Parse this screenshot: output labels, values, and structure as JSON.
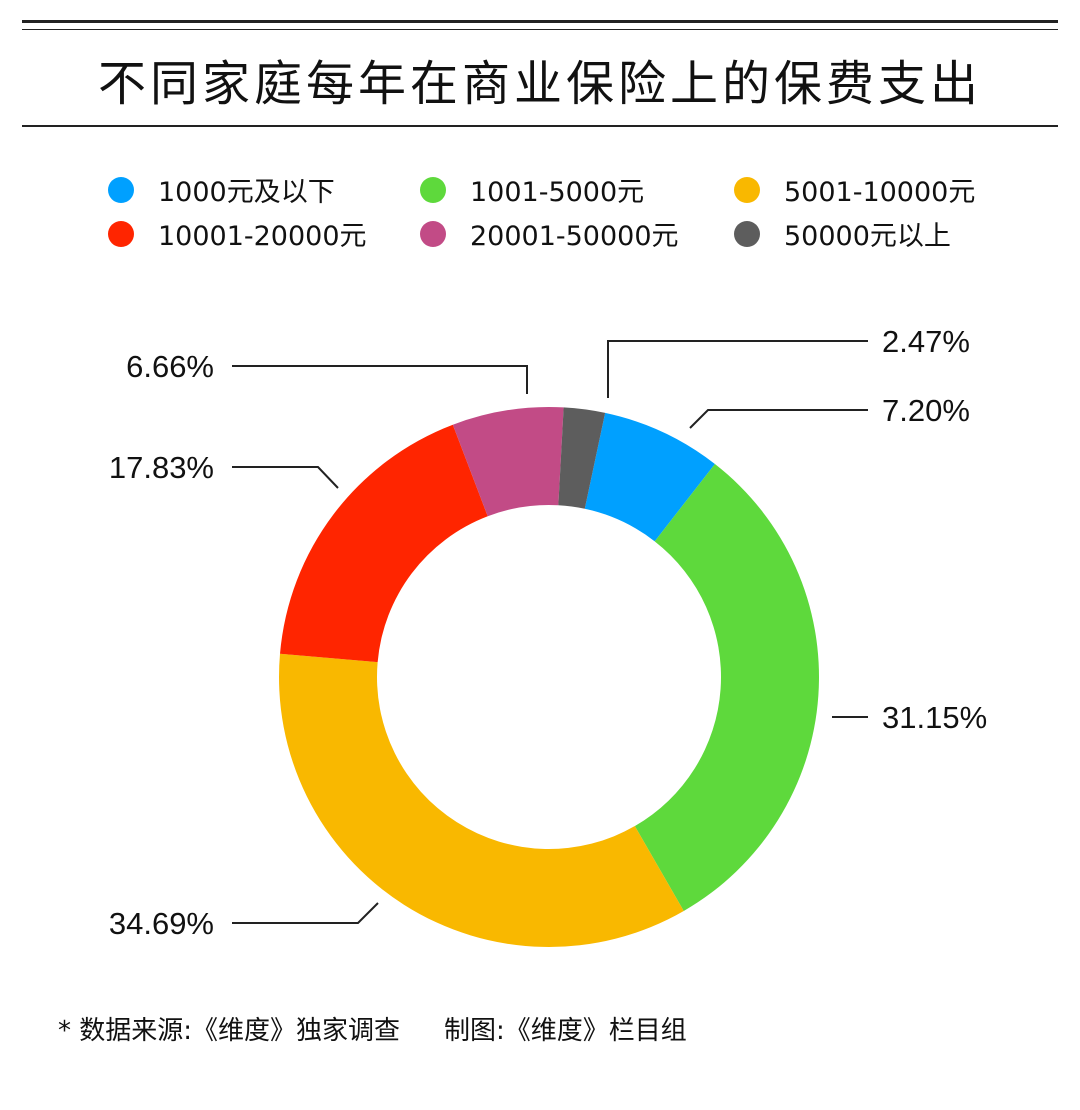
{
  "title": "不同家庭每年在商业保险上的保费支出",
  "chart_data": {
    "type": "pie",
    "donut": true,
    "title": "不同家庭每年在商业保险上的保费支出",
    "legend_position": "top",
    "slices": [
      {
        "label": "1000元及以下",
        "value": 7.2,
        "value_label": "7.20%",
        "color": "#00A0FF"
      },
      {
        "label": "1001-5000元",
        "value": 31.15,
        "value_label": "31.15%",
        "color": "#5ED93C"
      },
      {
        "label": "5001-10000元",
        "value": 34.69,
        "value_label": "34.69%",
        "color": "#F9B800"
      },
      {
        "label": "10001-20000元",
        "value": 17.83,
        "value_label": "17.83%",
        "color": "#FF2500"
      },
      {
        "label": "20001-50000元",
        "value": 6.66,
        "value_label": "6.66%",
        "color": "#C24B86"
      },
      {
        "label": "50000元以上",
        "value": 2.47,
        "value_label": "2.47%",
        "color": "#5D5D5D"
      }
    ]
  },
  "footer": {
    "source": "* 数据来源:《维度》独家调查",
    "credit": "制图:《维度》栏目组"
  }
}
